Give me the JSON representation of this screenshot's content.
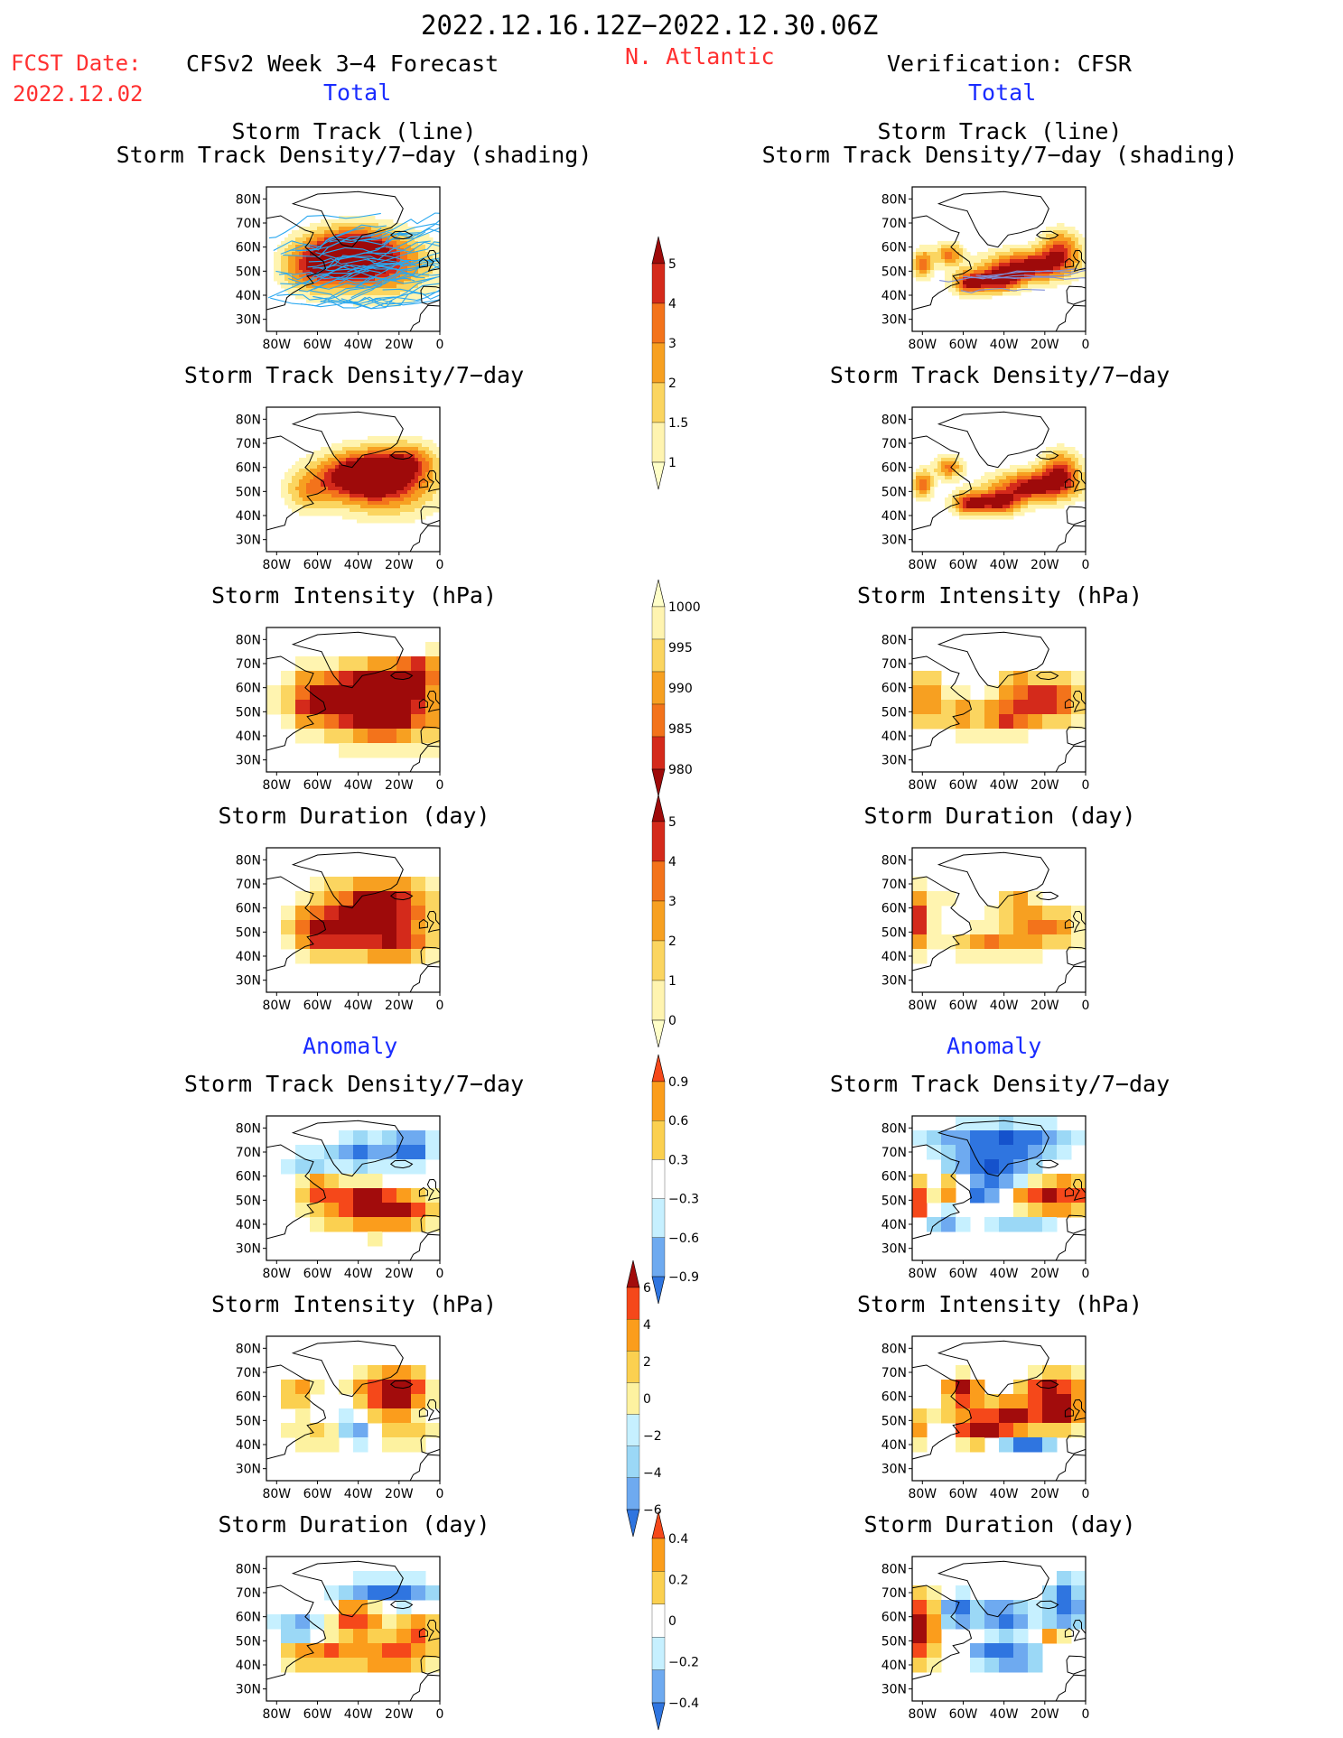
{
  "header": {
    "date_range": "2022.12.16.12Z−2022.12.30.06Z",
    "fcst_label": "FCST Date:",
    "fcst_date": "2022.12.02",
    "left_title": "CFSv2 Week 3−4 Forecast",
    "region": "N. Atlantic",
    "right_title": "Verification: CFSR"
  },
  "sections": {
    "total": "Total",
    "anomaly": "Anomaly"
  },
  "panel_titles": {
    "track_line": "Storm Track (line)",
    "track_shading": "Storm Track Density/7−day (shading)",
    "density": "Storm Track Density/7−day",
    "intensity": "Storm Intensity (hPa)",
    "duration": "Storm Duration (day)"
  },
  "axes": {
    "lat_labels": [
      "80N",
      "70N",
      "60N",
      "50N",
      "40N",
      "30N"
    ],
    "lon_labels": [
      "80W",
      "60W",
      "40W",
      "20W",
      "0"
    ]
  },
  "colorbars": {
    "total_density": [
      "5",
      "4",
      "3",
      "2",
      "1.5",
      "1"
    ],
    "total_intensity": [
      "1000",
      "995",
      "990",
      "985",
      "980"
    ],
    "total_duration": [
      "5",
      "4",
      "3",
      "2",
      "1",
      "0"
    ],
    "anom_density": [
      "0.9",
      "0.6",
      "0.3",
      "−0.3",
      "−0.6",
      "−0.9"
    ],
    "anom_intensity": [
      "6",
      "4",
      "2",
      "0",
      "−2",
      "−4",
      "−6"
    ],
    "anom_duration": [
      "0.4",
      "0.2",
      "0",
      "−0.2",
      "−0.4"
    ]
  },
  "colors": {
    "warm": [
      "#fff4b0",
      "#fbd560",
      "#f7a021",
      "#f3731b",
      "#d42a1b",
      "#9e0a0a"
    ],
    "anom_warm": [
      "#fdf2a0",
      "#fbd050",
      "#fb9d1c",
      "#f5481a",
      "#a20c0c"
    ],
    "anom_cool": [
      "#c6f0ff",
      "#9bd8f6",
      "#6eaaf0",
      "#2f75e0",
      "#1552cc"
    ],
    "track_line": "#2aa8f0",
    "track_line_obs": "#7f8fd8"
  }
}
